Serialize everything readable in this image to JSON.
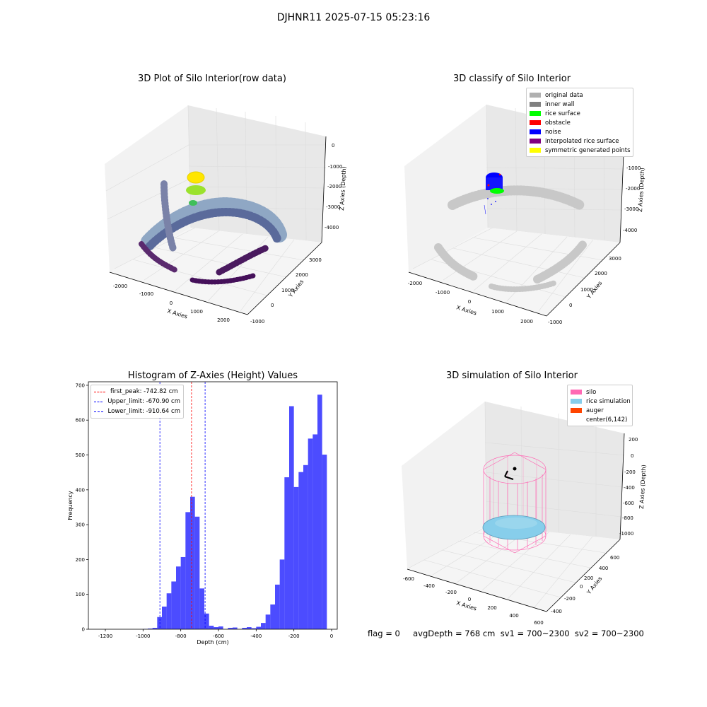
{
  "suptitle": "DJHNR11 2025-07-15 05:23:16",
  "footer": "flag = 0     avgDepth = 768 cm  sv1 = 700~2300  sv2 = 700~2300",
  "panels": {
    "raw": {
      "title": "3D Plot of Silo Interior(row data)",
      "xlabel": "X Axies",
      "ylabel": "Y Axies",
      "zlabel": "Z Axies (Depth)",
      "xticks": [
        "-2000",
        "-1000",
        "0",
        "1000",
        "2000"
      ],
      "yticks": [
        "-1000",
        "0",
        "1000",
        "2000",
        "3000"
      ],
      "zticks": [
        "0",
        "-1000",
        "-2000",
        "-3000",
        "-4000"
      ]
    },
    "classify": {
      "title": "3D classify of Silo Interior",
      "xlabel": "X Axies",
      "ylabel": "Y Axies",
      "zlabel": "Z Axies (Depth)",
      "xticks": [
        "-2000",
        "-1000",
        "0",
        "1000",
        "2000"
      ],
      "yticks": [
        "-1000",
        "0",
        "1000",
        "2000",
        "3000"
      ],
      "zticks": [
        "0",
        "-1000",
        "-2000",
        "-3000",
        "-4000"
      ],
      "legend": [
        {
          "label": "original data",
          "color": "#b0b0b0"
        },
        {
          "label": "inner wall",
          "color": "#808080"
        },
        {
          "label": "rice surface",
          "color": "#00ff00"
        },
        {
          "label": "obstacle",
          "color": "#ff0000"
        },
        {
          "label": "noise",
          "color": "#0000ff"
        },
        {
          "label": "interpolated rice surface",
          "color": "#800080"
        },
        {
          "label": "symmetric generated points",
          "color": "#ffff00"
        }
      ]
    },
    "simulation": {
      "title": "3D simulation of Silo Interior",
      "xlabel": "X Axies",
      "ylabel": "Y Axies",
      "zlabel": "Z Axies (Depth)",
      "xticks": [
        "-600",
        "-400",
        "-200",
        "0",
        "200",
        "400",
        "600"
      ],
      "yticks": [
        "-400",
        "-200",
        "0",
        "200",
        "400",
        "600"
      ],
      "zticks": [
        "200",
        "0",
        "-200",
        "-400",
        "-600",
        "-800",
        "-1000"
      ],
      "legend": [
        {
          "label": "silo",
          "color": "#ff69b4"
        },
        {
          "label": "rice simulation",
          "color": "#87ceeb"
        },
        {
          "label": "auger",
          "color": "#ff4500"
        },
        {
          "label": "center(6,142)",
          "color": "#ffffff"
        }
      ]
    }
  },
  "chart_data": [
    {
      "type": "bar",
      "title": "Histogram of Z-Axies (Height) Values",
      "xlabel": "Depth (cm)",
      "ylabel": "Frequency",
      "xlim": [
        -1290,
        30
      ],
      "ylim": [
        0,
        710
      ],
      "xticks": [
        -1200,
        -1000,
        -800,
        -600,
        -400,
        -200,
        0
      ],
      "yticks": [
        0,
        100,
        200,
        300,
        400,
        500,
        600,
        700
      ],
      "bar_color": "#0000ff",
      "bins": [
        {
          "x0": -1000,
          "x1": -975,
          "value": 1
        },
        {
          "x0": -975,
          "x1": -950,
          "value": 2
        },
        {
          "x0": -950,
          "x1": -925,
          "value": 4
        },
        {
          "x0": -925,
          "x1": -900,
          "value": 35
        },
        {
          "x0": -900,
          "x1": -875,
          "value": 65
        },
        {
          "x0": -875,
          "x1": -850,
          "value": 103
        },
        {
          "x0": -850,
          "x1": -825,
          "value": 137
        },
        {
          "x0": -825,
          "x1": -800,
          "value": 180
        },
        {
          "x0": -800,
          "x1": -775,
          "value": 207
        },
        {
          "x0": -775,
          "x1": -750,
          "value": 336
        },
        {
          "x0": -750,
          "x1": -725,
          "value": 380
        },
        {
          "x0": -725,
          "x1": -700,
          "value": 323
        },
        {
          "x0": -700,
          "x1": -675,
          "value": 117
        },
        {
          "x0": -675,
          "x1": -650,
          "value": 45
        },
        {
          "x0": -650,
          "x1": -625,
          "value": 10
        },
        {
          "x0": -625,
          "x1": -600,
          "value": 6
        },
        {
          "x0": -600,
          "x1": -575,
          "value": 8
        },
        {
          "x0": -550,
          "x1": -525,
          "value": 4
        },
        {
          "x0": -525,
          "x1": -500,
          "value": 5
        },
        {
          "x0": -475,
          "x1": -450,
          "value": 4
        },
        {
          "x0": -450,
          "x1": -425,
          "value": 6
        },
        {
          "x0": -425,
          "x1": -400,
          "value": 3
        },
        {
          "x0": -400,
          "x1": -375,
          "value": 7
        },
        {
          "x0": -375,
          "x1": -350,
          "value": 18
        },
        {
          "x0": -350,
          "x1": -325,
          "value": 42
        },
        {
          "x0": -325,
          "x1": -300,
          "value": 71
        },
        {
          "x0": -300,
          "x1": -275,
          "value": 128
        },
        {
          "x0": -275,
          "x1": -250,
          "value": 200
        },
        {
          "x0": -250,
          "x1": -225,
          "value": 436
        },
        {
          "x0": -225,
          "x1": -200,
          "value": 640
        },
        {
          "x0": -200,
          "x1": -175,
          "value": 408
        },
        {
          "x0": -175,
          "x1": -150,
          "value": 451
        },
        {
          "x0": -150,
          "x1": -125,
          "value": 471
        },
        {
          "x0": -125,
          "x1": -100,
          "value": 547
        },
        {
          "x0": -100,
          "x1": -75,
          "value": 559
        },
        {
          "x0": -75,
          "x1": -50,
          "value": 673
        },
        {
          "x0": -50,
          "x1": -25,
          "value": 501
        }
      ],
      "lines": [
        {
          "label": "first_peak: -742.82 cm",
          "x": -742.82,
          "color": "#ff0000"
        },
        {
          "label": "Upper_limit: -670.90 cm",
          "x": -670.9,
          "color": "#0000ff"
        },
        {
          "label": "Lower_limit: -910.64 cm",
          "x": -910.64,
          "color": "#0000ff"
        }
      ]
    }
  ]
}
